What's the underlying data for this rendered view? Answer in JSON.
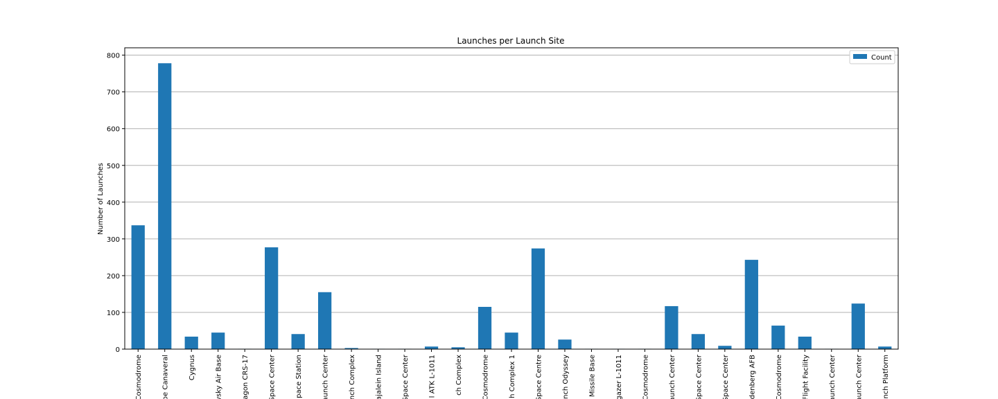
{
  "chart_data": {
    "type": "bar",
    "title": "Launches per Launch Site",
    "xlabel": "",
    "ylabel": "Number of Launches",
    "ylim": [
      0,
      820
    ],
    "yticks": [
      0,
      100,
      200,
      300,
      400,
      500,
      600,
      700,
      800
    ],
    "grid": "horizontal",
    "legend_position": "top-right",
    "colors": {
      "bar": "#1f77b4",
      "grid": "#b0b0b0",
      "axis": "#000000"
    },
    "categories": [
      "Cosmodrome",
      "pe Canaveral",
      "Cygnus",
      "vsky Air Base",
      "agon CRS-17",
      "Space Center",
      "pace Station",
      "aunch Center",
      "nch Complex",
      "ajalein Island",
      "Space Center",
      "l ATK L-1011",
      "ch Complex",
      "Cosmodrome",
      "h Complex 1",
      "Space Centre",
      "nch Odyssey",
      "Missile Base",
      "gazer L-1011",
      "Cosmodrome",
      "aunch Center",
      "Space Center",
      "Space Center",
      "denberg AFB",
      "Cosmodrome",
      "Flight Facility",
      "aunch Center",
      "aunch Center",
      "nch Platform"
    ],
    "series": [
      {
        "name": "Count",
        "values": [
          337,
          778,
          34,
          45,
          1,
          277,
          41,
          155,
          3,
          1,
          1,
          7,
          5,
          115,
          45,
          274,
          26,
          1,
          1,
          1,
          117,
          41,
          9,
          243,
          64,
          34,
          1,
          124,
          7
        ]
      }
    ]
  }
}
